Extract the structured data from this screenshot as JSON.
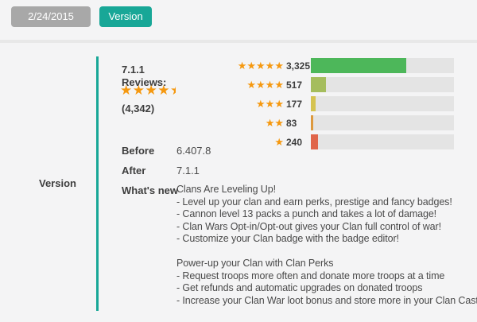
{
  "header": {
    "date_label": "2/24/2015",
    "version_button_label": "Version"
  },
  "panel": {
    "section_label": "Version",
    "version_number": "7.1.1",
    "reviews_label": "Reviews:",
    "rating_stars": 4.5,
    "reviews_total": "(4,342)",
    "before_label": "Before",
    "before_value": "6.407.8",
    "after_label": "After",
    "after_value": "7.1.1",
    "whats_new_label": "What's new",
    "whats_new_lines": [
      "Clans Are Leveling Up!",
      "- Level up your clan and earn perks, prestige and fancy badges!",
      "- Cannon level 13 packs a punch and takes a lot of damage!",
      "- Clan Wars Opt-in/Opt-out gives your Clan full control of war!",
      "- Customize your Clan badge with the badge editor!",
      "",
      "Power-up your Clan with Clan Perks",
      "- Request troops more often and donate more troops at a time",
      "- Get refunds and automatic upgrades on donated troops",
      "- Increase your Clan War loot bonus and store more in your Clan Castle"
    ]
  },
  "chart_data": {
    "type": "bar",
    "orientation": "horizontal",
    "categories": [
      "5 stars",
      "4 stars",
      "3 stars",
      "2 stars",
      "1 star"
    ],
    "star_counts": [
      5,
      4,
      3,
      2,
      1
    ],
    "values": [
      3325,
      517,
      177,
      83,
      240
    ],
    "value_labels": [
      "3,325",
      "517",
      "177",
      "83",
      "240"
    ],
    "xlim": [
      0,
      5000
    ],
    "bar_colors": [
      "#4db75a",
      "#a5bd5d",
      "#d5c351",
      "#dd993e",
      "#e0654a"
    ],
    "track_color": "#e4e4e4"
  },
  "colors": {
    "accent_teal": "#18a797",
    "date_button_gray": "#a8a8a8",
    "star_orange": "#f5980f",
    "background": "#f4f4f5",
    "divider": "#e8e8e8"
  }
}
